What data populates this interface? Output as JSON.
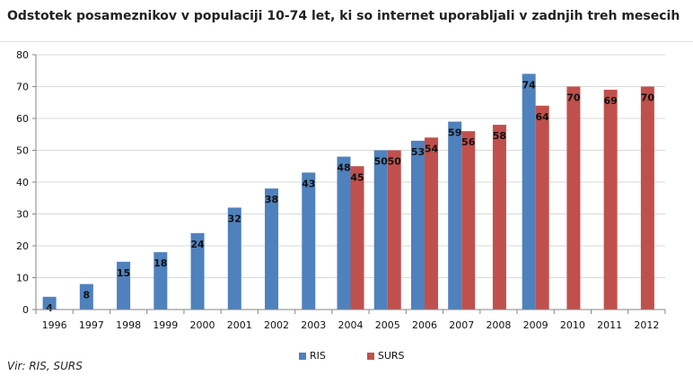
{
  "title": "Odstotek posameznikov v populaciji 10-74 let, ki so internet uporabljali v zadnjih treh mesecih",
  "source": "Vir: RIS, SURS",
  "colors": {
    "RIS": "#4f81bd",
    "SURS": "#c0504d",
    "grid": "#d9d9d9",
    "axis": "#868686"
  },
  "chart_data": {
    "type": "bar",
    "categories": [
      "1996",
      "1997",
      "1998",
      "1999",
      "2000",
      "2001",
      "2002",
      "2003",
      "2004",
      "2005",
      "2006",
      "2007",
      "2008",
      "2009",
      "2010",
      "2011",
      "2012"
    ],
    "series": [
      {
        "name": "RIS",
        "values": [
          4,
          8,
          15,
          18,
          24,
          32,
          38,
          43,
          48,
          50,
          53,
          59,
          null,
          74,
          null,
          null,
          null
        ]
      },
      {
        "name": "SURS",
        "values": [
          null,
          null,
          null,
          null,
          null,
          null,
          null,
          null,
          45,
          50,
          54,
          56,
          58,
          64,
          70,
          69,
          70
        ]
      }
    ],
    "ylim": [
      0,
      80
    ],
    "yticks": [
      0,
      10,
      20,
      30,
      40,
      50,
      60,
      70,
      80
    ],
    "xlabel": "",
    "ylabel": "",
    "grid": true,
    "legend": "bottom"
  }
}
